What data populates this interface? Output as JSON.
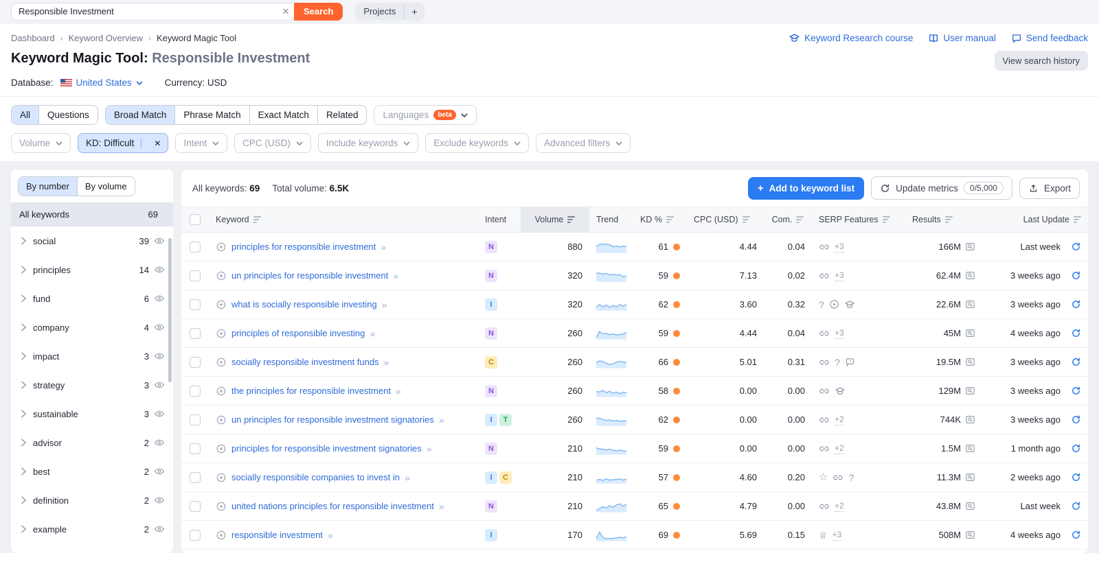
{
  "colors": {
    "accent_orange": "#ff642e",
    "link_blue": "#2d6cdb",
    "button_blue": "#2b7cf2",
    "kd_dot": "#ff8a3d",
    "spark_line": "#72b0ee",
    "spark_fill": "rgba(147,197,253,0.35)",
    "intent": {
      "N": {
        "bg": "#eee3fc",
        "fg": "#8c52d9"
      },
      "I": {
        "bg": "#d8ecff",
        "fg": "#2f80ed"
      },
      "C": {
        "bg": "#fdecb8",
        "fg": "#b98a00"
      },
      "T": {
        "bg": "#cdf1dd",
        "fg": "#1ea96c"
      }
    }
  },
  "topbar": {
    "search_value": "Responsible Investment",
    "clear_label": "✕",
    "search_button": "Search",
    "projects_button": "Projects",
    "plus_button": "+"
  },
  "breadcrumb": {
    "items": [
      "Dashboard",
      "Keyword Overview",
      "Keyword Magic Tool"
    ]
  },
  "header_links": [
    {
      "label": "Keyword Research course",
      "icon": "graduation-cap-icon"
    },
    {
      "label": "User manual",
      "icon": "book-icon"
    },
    {
      "label": "Send feedback",
      "icon": "feedback-icon"
    }
  ],
  "title": {
    "main": "Keyword Magic Tool:",
    "query": "Responsible Investment",
    "history_button": "View search history"
  },
  "meta": {
    "database_label": "Database:",
    "database_value": "United States",
    "currency_label": "Currency:",
    "currency_value": "USD"
  },
  "tabs": {
    "group1": [
      {
        "label": "All",
        "selected": true
      },
      {
        "label": "Questions",
        "selected": false
      }
    ],
    "group2": [
      {
        "label": "Broad Match",
        "selected": true
      },
      {
        "label": "Phrase Match",
        "selected": false
      },
      {
        "label": "Exact Match",
        "selected": false
      },
      {
        "label": "Related",
        "selected": false
      }
    ],
    "languages": {
      "label": "Languages",
      "badge": "beta"
    }
  },
  "filters": [
    {
      "label": "Volume",
      "active": false
    },
    {
      "label": "KD: Difficult",
      "active": true,
      "clear": "✕"
    },
    {
      "label": "Intent",
      "active": false
    },
    {
      "label": "CPC (USD)",
      "active": false
    },
    {
      "label": "Include keywords",
      "active": false
    },
    {
      "label": "Exclude keywords",
      "active": false
    },
    {
      "label": "Advanced filters",
      "active": false
    }
  ],
  "sidebar": {
    "toggle": [
      "By number",
      "By volume"
    ],
    "selected_toggle": "By number",
    "all_label": "All keywords",
    "all_count": "69",
    "groups": [
      {
        "name": "social",
        "count": "39"
      },
      {
        "name": "principles",
        "count": "14"
      },
      {
        "name": "fund",
        "count": "6"
      },
      {
        "name": "company",
        "count": "4"
      },
      {
        "name": "impact",
        "count": "3"
      },
      {
        "name": "strategy",
        "count": "3"
      },
      {
        "name": "sustainable",
        "count": "3"
      },
      {
        "name": "advisor",
        "count": "2"
      },
      {
        "name": "best",
        "count": "2"
      },
      {
        "name": "definition",
        "count": "2"
      },
      {
        "name": "example",
        "count": "2"
      }
    ]
  },
  "toolbar": {
    "all_keywords_label": "All keywords:",
    "all_keywords_value": "69",
    "total_volume_label": "Total volume:",
    "total_volume_value": "6.5K",
    "add_button": "Add to keyword list",
    "update_button": "Update metrics",
    "update_quota": "0/5,000",
    "export_button": "Export"
  },
  "table": {
    "columns": [
      {
        "label": "Keyword",
        "sort": true
      },
      {
        "label": "Intent",
        "sort": false
      },
      {
        "label": "Volume",
        "sort": true,
        "sorted": true
      },
      {
        "label": "Trend",
        "sort": false
      },
      {
        "label": "KD %",
        "sort": true
      },
      {
        "label": "CPC (USD)",
        "sort": true
      },
      {
        "label": "Com.",
        "sort": true
      },
      {
        "label": "SERP Features",
        "sort": true
      },
      {
        "label": "Results",
        "sort": true
      },
      {
        "label": "Last Update",
        "sort": true
      }
    ],
    "rows": [
      {
        "keyword": "principles for responsible investment",
        "intents": [
          "N"
        ],
        "volume": "880",
        "trend": [
          0.6,
          0.8,
          0.85,
          0.8,
          0.78,
          0.55,
          0.65,
          0.55,
          0.63,
          0.58
        ],
        "kd": "61",
        "cpc": "4.44",
        "com": "0.04",
        "serp": [
          "link",
          "+3"
        ],
        "results": "166M",
        "last_update": "Last week"
      },
      {
        "keyword": "un principles for responsible investment",
        "intents": [
          "N"
        ],
        "volume": "320",
        "trend": [
          0.8,
          0.82,
          0.7,
          0.78,
          0.65,
          0.7,
          0.6,
          0.68,
          0.45,
          0.55
        ],
        "kd": "59",
        "cpc": "7.13",
        "com": "0.02",
        "serp": [
          "link",
          "+3"
        ],
        "results": "62.4M",
        "last_update": "3 weeks ago"
      },
      {
        "keyword": "what is socially responsible investing",
        "intents": [
          "I"
        ],
        "volume": "320",
        "trend": [
          0.3,
          0.55,
          0.3,
          0.5,
          0.28,
          0.45,
          0.3,
          0.55,
          0.4,
          0.55
        ],
        "kd": "62",
        "cpc": "3.60",
        "com": "0.32",
        "serp": [
          "question",
          "play",
          "graduation-cap"
        ],
        "results": "22.6M",
        "last_update": "3 weeks ago"
      },
      {
        "keyword": "principles of responsible investing",
        "intents": [
          "N"
        ],
        "volume": "260",
        "trend": [
          0.1,
          0.75,
          0.5,
          0.55,
          0.42,
          0.48,
          0.38,
          0.42,
          0.5,
          0.62
        ],
        "kd": "59",
        "cpc": "4.44",
        "com": "0.04",
        "serp": [
          "link",
          "+3"
        ],
        "results": "45M",
        "last_update": "4 weeks ago"
      },
      {
        "keyword": "socially responsible investment funds",
        "intents": [
          "C"
        ],
        "volume": "260",
        "trend": [
          0.5,
          0.68,
          0.62,
          0.45,
          0.32,
          0.38,
          0.55,
          0.62,
          0.58,
          0.5
        ],
        "kd": "66",
        "cpc": "5.01",
        "com": "0.31",
        "serp": [
          "link",
          "question",
          "comment"
        ],
        "results": "19.5M",
        "last_update": "3 weeks ago"
      },
      {
        "keyword": "the principles for responsible investment",
        "intents": [
          "N"
        ],
        "volume": "260",
        "trend": [
          0.5,
          0.45,
          0.62,
          0.38,
          0.52,
          0.32,
          0.45,
          0.28,
          0.42,
          0.35
        ],
        "kd": "58",
        "cpc": "0.00",
        "com": "0.00",
        "serp": [
          "link",
          "graduation-cap"
        ],
        "results": "129M",
        "last_update": "3 weeks ago"
      },
      {
        "keyword": "un principles for responsible investment signatories",
        "intents": [
          "I",
          "T"
        ],
        "volume": "260",
        "trend": [
          0.75,
          0.7,
          0.58,
          0.48,
          0.55,
          0.42,
          0.5,
          0.38,
          0.45,
          0.42
        ],
        "kd": "62",
        "cpc": "0.00",
        "com": "0.00",
        "serp": [
          "link",
          "+2"
        ],
        "results": "744K",
        "last_update": "3 weeks ago"
      },
      {
        "keyword": "principles for responsible investment signatories",
        "intents": [
          "N"
        ],
        "volume": "210",
        "trend": [
          0.62,
          0.55,
          0.48,
          0.42,
          0.5,
          0.38,
          0.32,
          0.4,
          0.32,
          0.28
        ],
        "kd": "59",
        "cpc": "0.00",
        "com": "0.00",
        "serp": [
          "link",
          "+2"
        ],
        "results": "1.5M",
        "last_update": "1 month ago"
      },
      {
        "keyword": "socially responsible companies to invest in",
        "intents": [
          "I",
          "C"
        ],
        "volume": "210",
        "trend": [
          0.28,
          0.35,
          0.25,
          0.4,
          0.28,
          0.32,
          0.35,
          0.42,
          0.28,
          0.38
        ],
        "kd": "57",
        "cpc": "4.60",
        "com": "0.20",
        "serp": [
          "star",
          "link",
          "question"
        ],
        "results": "11.3M",
        "last_update": "2 weeks ago"
      },
      {
        "keyword": "united nations principles for responsible investment",
        "intents": [
          "N"
        ],
        "volume": "210",
        "trend": [
          0.15,
          0.3,
          0.5,
          0.38,
          0.6,
          0.45,
          0.68,
          0.8,
          0.55,
          0.75
        ],
        "kd": "65",
        "cpc": "4.79",
        "com": "0.00",
        "serp": [
          "link",
          "+2"
        ],
        "results": "43.8M",
        "last_update": "Last week"
      },
      {
        "keyword": "responsible investment",
        "intents": [
          "I"
        ],
        "volume": "170",
        "trend": [
          0.2,
          0.85,
          0.3,
          0.18,
          0.22,
          0.2,
          0.28,
          0.32,
          0.26,
          0.38
        ],
        "kd": "69",
        "cpc": "5.69",
        "com": "0.15",
        "serp": [
          "crown",
          "+3"
        ],
        "results": "508M",
        "last_update": "4 weeks ago"
      }
    ]
  }
}
